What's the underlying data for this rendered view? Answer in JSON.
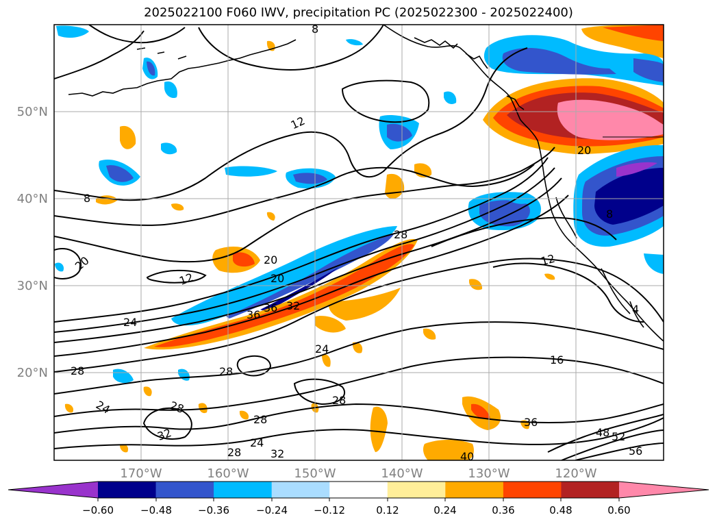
{
  "title": "2025022100 F060 IWV, precipitation PC (2025022300 - 2025022400)",
  "map": {
    "lat_labels": [
      "50°N",
      "40°N",
      "30°N",
      "20°N"
    ],
    "lon_labels": [
      "170°W",
      "160°W",
      "150°W",
      "140°W",
      "130°W",
      "120°W"
    ],
    "contour_labels": [
      "8",
      "12",
      "8",
      "20",
      "12",
      "20",
      "20",
      "24",
      "36",
      "36",
      "32",
      "24",
      "28",
      "28",
      "16",
      "12",
      "28",
      "24",
      "28",
      "32",
      "28",
      "24",
      "32",
      "28",
      "36",
      "48",
      "52",
      "56",
      "4",
      "20",
      "8",
      "28",
      "40"
    ]
  },
  "colorbar": {
    "colors": [
      "#9933cc",
      "#00008b",
      "#3355cc",
      "#00bbff",
      "#aaddff",
      "#ffffff",
      "#ffee99",
      "#ffaa00",
      "#ff4400",
      "#b22222",
      "#ff88aa"
    ],
    "tick_labels": [
      "−0.60",
      "−0.48",
      "−0.36",
      "−0.24",
      "−0.12",
      "0.12",
      "0.24",
      "0.36",
      "0.48",
      "0.60"
    ]
  }
}
